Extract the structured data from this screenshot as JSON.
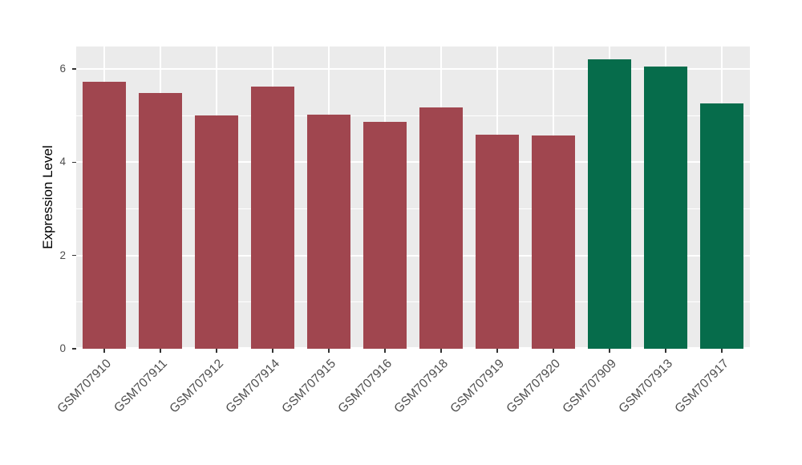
{
  "figure": {
    "background": "#FFFFFF"
  },
  "chart_data": {
    "type": "bar",
    "title": "",
    "xlabel": "",
    "ylabel": "Expression Level",
    "ylim": [
      0,
      6.48
    ],
    "yticks": [
      0,
      2,
      4,
      6
    ],
    "minor_gridlines": [
      1,
      3,
      5
    ],
    "grid": true,
    "legend": "none",
    "panel_background": "#EBEBEB",
    "gridline_color": "#FFFFFF",
    "tick_color": "#333333",
    "tick_label_color": "#4D4D4D",
    "axis_title_color": "#000000",
    "categories": [
      "GSM707910",
      "GSM707911",
      "GSM707912",
      "GSM707914",
      "GSM707915",
      "GSM707916",
      "GSM707918",
      "GSM707919",
      "GSM707920",
      "GSM707909",
      "GSM707913",
      "GSM707917"
    ],
    "series": [
      {
        "name": "Expression Level",
        "values": [
          5.73,
          5.48,
          5.0,
          5.62,
          5.02,
          4.87,
          5.17,
          4.59,
          4.57,
          6.21,
          6.05,
          5.26
        ]
      }
    ],
    "bar_groups": [
      "red",
      "red",
      "red",
      "red",
      "red",
      "red",
      "red",
      "red",
      "red",
      "green",
      "green",
      "green"
    ],
    "group_colors": {
      "red": "#A0464F",
      "green": "#066C4B"
    }
  }
}
